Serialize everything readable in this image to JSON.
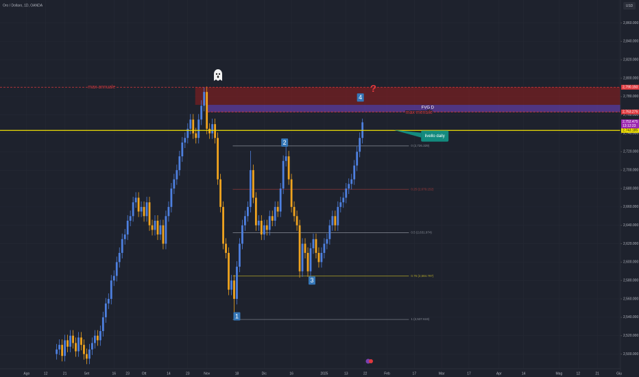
{
  "header": {
    "symbol": "Oro / Dollaro, 1D, OANDA",
    "currency": "USD"
  },
  "chart_data": {
    "type": "candlestick",
    "colors": {
      "up": "#4e80e0",
      "down": "#f0a41f",
      "background": "#1e222d",
      "grid": "#262a35"
    },
    "grid": true,
    "x": [
      11,
      12,
      13,
      14,
      15,
      16,
      17,
      18,
      19,
      20,
      21,
      22,
      23,
      24,
      25,
      26,
      27,
      28,
      29,
      30,
      31,
      32,
      33,
      34,
      35,
      36,
      37,
      38,
      39,
      40,
      41,
      42,
      43,
      44,
      45,
      46,
      47,
      48,
      49,
      50,
      51,
      52,
      53,
      54,
      55,
      56,
      57,
      58,
      59,
      60,
      61,
      62,
      63,
      64,
      65,
      66,
      67,
      68,
      69,
      70,
      71,
      72,
      73,
      74,
      75,
      76,
      77,
      78,
      79,
      80,
      81,
      82,
      83,
      84,
      85,
      86,
      87,
      88,
      89,
      90,
      91,
      92,
      93,
      94,
      95,
      96,
      97,
      98,
      99,
      100,
      101,
      102,
      103,
      104,
      105,
      106,
      107,
      108,
      109,
      110,
      111,
      112,
      113,
      114,
      115,
      116,
      117,
      118,
      119,
      120,
      121,
      122,
      123
    ],
    "ohlc": [
      [
        2500,
        2511,
        2494,
        2505
      ],
      [
        2505,
        2516,
        2499,
        2510
      ],
      [
        2510,
        2516,
        2492,
        2498
      ],
      [
        2498,
        2521,
        2492,
        2515
      ],
      [
        2515,
        2521,
        2502,
        2508
      ],
      [
        2508,
        2526,
        2502,
        2520
      ],
      [
        2520,
        2526,
        2506,
        2512
      ],
      [
        2512,
        2518,
        2497,
        2503
      ],
      [
        2503,
        2524,
        2497,
        2518
      ],
      [
        2518,
        2524,
        2504,
        2510
      ],
      [
        2510,
        2516,
        2494,
        2500
      ],
      [
        2500,
        2506,
        2489,
        2495
      ],
      [
        2495,
        2511,
        2489,
        2505
      ],
      [
        2505,
        2518,
        2499,
        2512
      ],
      [
        2512,
        2526,
        2506,
        2520
      ],
      [
        2520,
        2526,
        2509,
        2515
      ],
      [
        2515,
        2531,
        2509,
        2525
      ],
      [
        2525,
        2546,
        2519,
        2540
      ],
      [
        2540,
        2561,
        2534,
        2555
      ],
      [
        2555,
        2566,
        2549,
        2560
      ],
      [
        2560,
        2586,
        2554,
        2580
      ],
      [
        2580,
        2591,
        2574,
        2585
      ],
      [
        2585,
        2606,
        2579,
        2600
      ],
      [
        2600,
        2616,
        2594,
        2610
      ],
      [
        2610,
        2631,
        2604,
        2625
      ],
      [
        2625,
        2636,
        2619,
        2630
      ],
      [
        2630,
        2651,
        2624,
        2645
      ],
      [
        2645,
        2656,
        2639,
        2650
      ],
      [
        2650,
        2671,
        2644,
        2665
      ],
      [
        2665,
        2676,
        2659,
        2670
      ],
      [
        2670,
        2676,
        2649,
        2655
      ],
      [
        2655,
        2666,
        2649,
        2660
      ],
      [
        2660,
        2666,
        2644,
        2650
      ],
      [
        2650,
        2671,
        2644,
        2665
      ],
      [
        2665,
        2671,
        2634,
        2640
      ],
      [
        2640,
        2646,
        2629,
        2635
      ],
      [
        2635,
        2651,
        2629,
        2645
      ],
      [
        2645,
        2651,
        2624,
        2630
      ],
      [
        2630,
        2646,
        2624,
        2640
      ],
      [
        2640,
        2646,
        2614,
        2620
      ],
      [
        2620,
        2656,
        2614,
        2650
      ],
      [
        2650,
        2666,
        2644,
        2660
      ],
      [
        2660,
        2686,
        2654,
        2680
      ],
      [
        2680,
        2696,
        2674,
        2690
      ],
      [
        2690,
        2706,
        2684,
        2700
      ],
      [
        2700,
        2721,
        2694,
        2715
      ],
      [
        2715,
        2736,
        2709,
        2730
      ],
      [
        2730,
        2741,
        2724,
        2735
      ],
      [
        2735,
        2751,
        2729,
        2745
      ],
      [
        2745,
        2761,
        2739,
        2755
      ],
      [
        2755,
        2761,
        2734,
        2740
      ],
      [
        2740,
        2746,
        2729,
        2735
      ],
      [
        2735,
        2761,
        2729,
        2755
      ],
      [
        2755,
        2776,
        2749,
        2770
      ],
      [
        2770,
        2790,
        2764,
        2785
      ],
      [
        2785,
        2791,
        2739,
        2745
      ],
      [
        2745,
        2751,
        2734,
        2740
      ],
      [
        2740,
        2756,
        2734,
        2750
      ],
      [
        2750,
        2756,
        2729,
        2735
      ],
      [
        2735,
        2741,
        2684,
        2690
      ],
      [
        2690,
        2696,
        2654,
        2660
      ],
      [
        2660,
        2666,
        2614,
        2620
      ],
      [
        2620,
        2626,
        2604,
        2610
      ],
      [
        2610,
        2616,
        2564,
        2570
      ],
      [
        2570,
        2586,
        2564,
        2580
      ],
      [
        2580,
        2586,
        2537,
        2560
      ],
      [
        2560,
        2601,
        2554,
        2595
      ],
      [
        2595,
        2626,
        2589,
        2620
      ],
      [
        2620,
        2646,
        2614,
        2640
      ],
      [
        2640,
        2656,
        2634,
        2650
      ],
      [
        2650,
        2666,
        2644,
        2660
      ],
      [
        2660,
        2721,
        2654,
        2700
      ],
      [
        2700,
        2706,
        2664,
        2670
      ],
      [
        2670,
        2676,
        2634,
        2640
      ],
      [
        2640,
        2651,
        2634,
        2645
      ],
      [
        2645,
        2651,
        2624,
        2630
      ],
      [
        2630,
        2646,
        2624,
        2640
      ],
      [
        2640,
        2646,
        2629,
        2635
      ],
      [
        2635,
        2656,
        2629,
        2650
      ],
      [
        2650,
        2656,
        2639,
        2645
      ],
      [
        2645,
        2666,
        2639,
        2660
      ],
      [
        2660,
        2666,
        2649,
        2655
      ],
      [
        2655,
        2686,
        2649,
        2680
      ],
      [
        2680,
        2716,
        2674,
        2710
      ],
      [
        2710,
        2728,
        2704,
        2715
      ],
      [
        2715,
        2721,
        2684,
        2690
      ],
      [
        2690,
        2696,
        2654,
        2660
      ],
      [
        2660,
        2666,
        2644,
        2650
      ],
      [
        2650,
        2656,
        2634,
        2640
      ],
      [
        2640,
        2646,
        2583,
        2590
      ],
      [
        2590,
        2626,
        2584,
        2620
      ],
      [
        2620,
        2626,
        2604,
        2610
      ],
      [
        2610,
        2616,
        2584,
        2590
      ],
      [
        2590,
        2621,
        2584,
        2615
      ],
      [
        2615,
        2631,
        2609,
        2625
      ],
      [
        2625,
        2631,
        2604,
        2610
      ],
      [
        2610,
        2616,
        2594,
        2600
      ],
      [
        2600,
        2616,
        2594,
        2610
      ],
      [
        2610,
        2626,
        2604,
        2620
      ],
      [
        2620,
        2631,
        2614,
        2625
      ],
      [
        2625,
        2646,
        2619,
        2640
      ],
      [
        2640,
        2656,
        2634,
        2650
      ],
      [
        2650,
        2656,
        2634,
        2640
      ],
      [
        2640,
        2666,
        2634,
        2660
      ],
      [
        2660,
        2671,
        2654,
        2665
      ],
      [
        2665,
        2676,
        2659,
        2670
      ],
      [
        2670,
        2686,
        2664,
        2680
      ],
      [
        2680,
        2691,
        2674,
        2685
      ],
      [
        2685,
        2696,
        2679,
        2690
      ],
      [
        2690,
        2711,
        2684,
        2705
      ],
      [
        2705,
        2726,
        2699,
        2720
      ],
      [
        2720,
        2741,
        2714,
        2735
      ],
      [
        2735,
        2756,
        2729,
        2752
      ]
    ],
    "xlim": [
      -9.75,
      217.5
    ],
    "xticks": [
      {
        "value": 0,
        "label": "Ago"
      },
      {
        "value": 7,
        "label": "12"
      },
      {
        "value": 14,
        "label": "21"
      },
      {
        "value": 22,
        "label": "Set"
      },
      {
        "value": 32,
        "label": "16"
      },
      {
        "value": 37,
        "label": "23"
      },
      {
        "value": 43,
        "label": "Ott"
      },
      {
        "value": 52,
        "label": "14"
      },
      {
        "value": 59,
        "label": "23"
      },
      {
        "value": 66,
        "label": "Nov"
      },
      {
        "value": 77,
        "label": "18"
      },
      {
        "value": 87,
        "label": "Dic"
      },
      {
        "value": 97,
        "label": "16"
      },
      {
        "value": 109,
        "label": "2025"
      },
      {
        "value": 117,
        "label": "13"
      },
      {
        "value": 124,
        "label": "22"
      },
      {
        "value": 132,
        "label": "Feb"
      },
      {
        "value": 142,
        "label": "17"
      },
      {
        "value": 152,
        "label": "Mar"
      },
      {
        "value": 162,
        "label": "17"
      },
      {
        "value": 173,
        "label": "Apr"
      },
      {
        "value": 182,
        "label": "14"
      },
      {
        "value": 195,
        "label": "Mag"
      },
      {
        "value": 202,
        "label": "12"
      },
      {
        "value": 209,
        "label": "21"
      },
      {
        "value": 217,
        "label": "Giu"
      }
    ],
    "ylim": [
      2484,
      2885
    ],
    "yticks": [
      {
        "value": 2500,
        "label": "2,500.000"
      },
      {
        "value": 2520,
        "label": "2,520.000"
      },
      {
        "value": 2540,
        "label": "2,540.000"
      },
      {
        "value": 2560,
        "label": "2,560.000"
      },
      {
        "value": 2580,
        "label": "2,580.000"
      },
      {
        "value": 2600,
        "label": "2,600.000"
      },
      {
        "value": 2620,
        "label": "2,620.000"
      },
      {
        "value": 2640,
        "label": "2,640.000"
      },
      {
        "value": 2660,
        "label": "2,660.000"
      },
      {
        "value": 2680,
        "label": "2,680.000"
      },
      {
        "value": 2700,
        "label": "2,700.000"
      },
      {
        "value": 2720,
        "label": "2,720.000"
      },
      {
        "value": 2740,
        "label": "2,740.000"
      },
      {
        "value": 2760,
        "label": "2,760.000"
      },
      {
        "value": 2780,
        "label": "2,780.000"
      },
      {
        "value": 2800,
        "label": "2,800.000"
      },
      {
        "value": 2820,
        "label": "2,820.000"
      },
      {
        "value": 2840,
        "label": "2,840.000"
      },
      {
        "value": 2860,
        "label": "2,860.000"
      }
    ],
    "zones": [
      {
        "x0": 61.75,
        "y0": 2771,
        "y1": 2790.15,
        "color": "rgba(150,30,30,0.55)"
      },
      {
        "x0": 66.25,
        "y0": 2763.275,
        "y1": 2771,
        "color": "rgba(120,70,200,0.55)",
        "label": "FVG D"
      }
    ],
    "levels": [
      {
        "name": "max annuale",
        "name_x": 27.5,
        "value": 2790.15,
        "label": "2,790.150",
        "color": "#e0393e",
        "dash": true,
        "x0": -9.75
      },
      {
        "name": "max mensile",
        "name_x": 143.75,
        "value": 2763.275,
        "label": "2,763.275",
        "color": "#e0393e",
        "dash": true,
        "x0": 66.25
      },
      {
        "value": 2743.185,
        "label": "2,743.185",
        "color": "#f2e205",
        "dash": false,
        "x0": -9.75
      }
    ],
    "last_price": {
      "value": 2752.475,
      "label": "2,752.475",
      "countdown": "13:12:23",
      "color": "#9c27b0"
    },
    "fib": {
      "x0": 75.5,
      "x1": 140,
      "levels": [
        {
          "value": 2726.329,
          "label": "0 (2,726.329)",
          "color": "#8a8f99"
        },
        {
          "value": 2679.152,
          "label": "0.25 (2,679.152)",
          "color": "#a33a3a"
        },
        {
          "value": 2631.974,
          "label": "0.5 (2,631.974)",
          "color": "#8a8f99"
        },
        {
          "value": 2584.797,
          "label": "0.75 (2,584.797)",
          "color": "#b5a82a"
        },
        {
          "value": 2537.619,
          "label": "1 (2,537.619)",
          "color": "#8a8f99"
        }
      ]
    },
    "markers": [
      {
        "text": "1",
        "x": 77,
        "y": 2541
      },
      {
        "text": "2",
        "x": 94.5,
        "y": 2730
      },
      {
        "text": "3",
        "x": 104.5,
        "y": 2580
      },
      {
        "text": "4",
        "x": 122.25,
        "y": 2779
      }
    ],
    "question": {
      "text": "?",
      "x": 127,
      "y": 2788
    },
    "callout": {
      "text": "livello daily",
      "x": 149.5,
      "y": 2737
    }
  }
}
